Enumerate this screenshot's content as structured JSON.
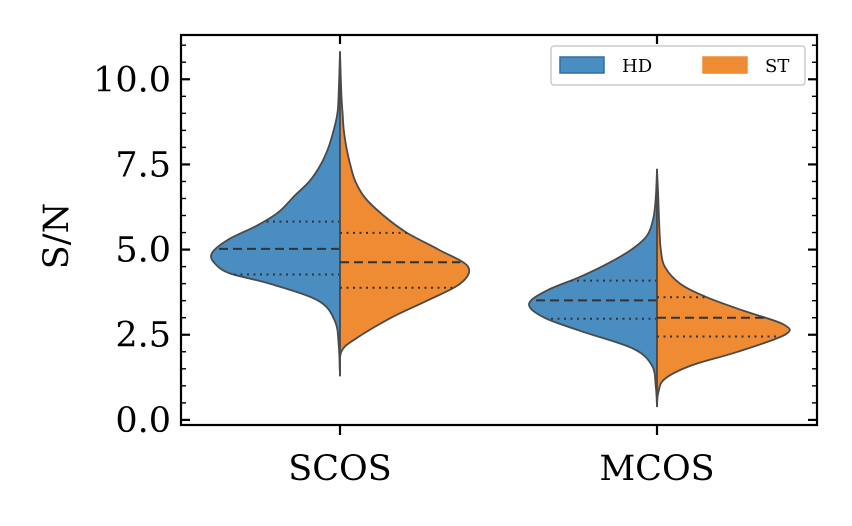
{
  "chart_data": {
    "type": "split-violin",
    "ylabel": "S/N",
    "xlabel": "",
    "ylim": [
      -0.15,
      11.3
    ],
    "yticks": [
      "0.0",
      "2.5",
      "5.0",
      "7.5",
      "10.0"
    ],
    "categories": [
      "SCOS",
      "MCOS"
    ],
    "legend": {
      "position": "top-right",
      "entries": [
        "HD",
        "ST"
      ]
    },
    "series": [
      {
        "name": "HD",
        "color": "#4a8dc1",
        "violins": [
          {
            "category": "SCOS",
            "q1": 4.27,
            "median": 5.02,
            "q3": 5.82,
            "profile": [
              [
                1.3,
                0.0
              ],
              [
                2.2,
                0.01
              ],
              [
                2.9,
                0.04
              ],
              [
                3.5,
                0.17
              ],
              [
                4.0,
                0.55
              ],
              [
                4.3,
                0.86
              ],
              [
                4.6,
                0.98
              ],
              [
                4.9,
                1.0
              ],
              [
                5.3,
                0.87
              ],
              [
                5.7,
                0.65
              ],
              [
                6.1,
                0.48
              ],
              [
                6.6,
                0.35
              ],
              [
                7.0,
                0.24
              ],
              [
                7.5,
                0.15
              ],
              [
                8.0,
                0.09
              ],
              [
                8.5,
                0.05
              ],
              [
                9.0,
                0.02
              ],
              [
                9.6,
                0.01
              ],
              [
                10.8,
                0.0
              ]
            ]
          },
          {
            "category": "MCOS",
            "q1": 2.97,
            "median": 3.51,
            "q3": 4.09,
            "profile": [
              [
                0.4,
                0.0
              ],
              [
                1.0,
                0.01
              ],
              [
                1.6,
                0.04
              ],
              [
                2.1,
                0.19
              ],
              [
                2.6,
                0.59
              ],
              [
                3.0,
                0.88
              ],
              [
                3.4,
                1.0
              ],
              [
                3.8,
                0.86
              ],
              [
                4.2,
                0.6
              ],
              [
                4.6,
                0.38
              ],
              [
                5.0,
                0.2
              ],
              [
                5.4,
                0.08
              ],
              [
                5.9,
                0.03
              ],
              [
                6.5,
                0.01
              ],
              [
                7.35,
                0.0
              ]
            ]
          }
        ]
      },
      {
        "name": "ST",
        "color": "#ef8b33",
        "violins": [
          {
            "category": "SCOS",
            "q1": 3.88,
            "median": 4.63,
            "q3": 5.49,
            "profile": [
              [
                1.3,
                0.0
              ],
              [
                2.0,
                0.01
              ],
              [
                2.4,
                0.13
              ],
              [
                3.0,
                0.4
              ],
              [
                3.5,
                0.68
              ],
              [
                4.0,
                0.94
              ],
              [
                4.5,
                1.0
              ],
              [
                5.0,
                0.77
              ],
              [
                5.5,
                0.52
              ],
              [
                6.0,
                0.34
              ],
              [
                6.5,
                0.2
              ],
              [
                7.0,
                0.12
              ],
              [
                7.5,
                0.08
              ],
              [
                8.0,
                0.05
              ],
              [
                8.5,
                0.03
              ],
              [
                9.0,
                0.02
              ],
              [
                9.6,
                0.01
              ],
              [
                10.8,
                0.0
              ]
            ]
          },
          {
            "category": "MCOS",
            "q1": 2.45,
            "median": 3.0,
            "q3": 3.6,
            "profile": [
              [
                0.4,
                0.0
              ],
              [
                0.8,
                0.01
              ],
              [
                1.2,
                0.06
              ],
              [
                1.6,
                0.27
              ],
              [
                2.0,
                0.63
              ],
              [
                2.5,
                1.0
              ],
              [
                2.8,
                0.99
              ],
              [
                3.2,
                0.68
              ],
              [
                3.6,
                0.39
              ],
              [
                4.0,
                0.18
              ],
              [
                4.5,
                0.06
              ],
              [
                5.0,
                0.03
              ],
              [
                5.5,
                0.02
              ],
              [
                6.5,
                0.01
              ],
              [
                7.35,
                0.0
              ]
            ]
          }
        ]
      }
    ]
  }
}
